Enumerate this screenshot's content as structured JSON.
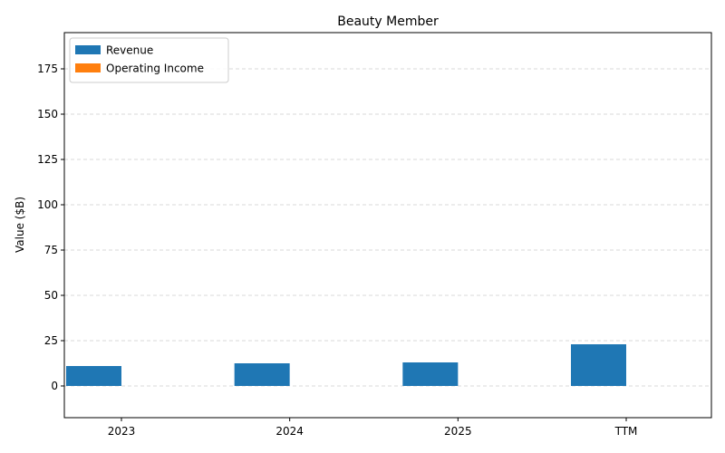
{
  "chart_data": {
    "type": "bar",
    "title": "Beauty Member",
    "xlabel": "",
    "ylabel": "Value ($B)",
    "categories": [
      "2023",
      "2024",
      "2025",
      "TTM"
    ],
    "series": [
      {
        "name": "Revenue",
        "values": [
          11.0,
          12.5,
          13.0,
          23.0
        ],
        "color": "#1f77b4"
      },
      {
        "name": "Operating Income",
        "values": [
          0,
          0,
          0,
          0
        ],
        "color": "#ff7f0e"
      }
    ],
    "ylim": [
      -17.5,
      195
    ],
    "yticks": [
      0,
      25,
      50,
      75,
      100,
      125,
      150,
      175
    ],
    "grid": "y-dashed",
    "legend_position": "top-left"
  }
}
